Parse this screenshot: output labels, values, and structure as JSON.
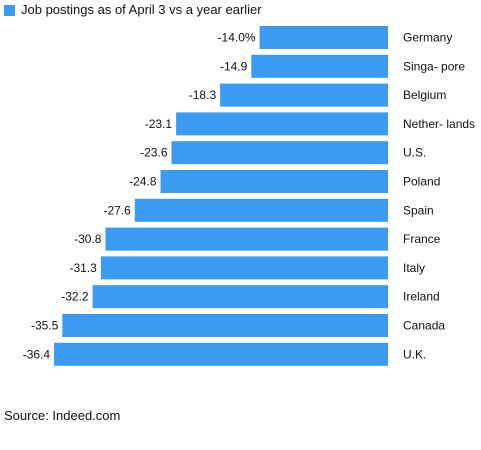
{
  "legend": {
    "label": "Job postings as of April 3 vs a year earlier",
    "color": "#3b9bf1"
  },
  "chart_data": {
    "type": "bar",
    "orientation": "horizontal",
    "categories": [
      "Germany",
      "Singa- pore",
      "Belgium",
      "Nether- lands",
      "U.S.",
      "Poland",
      "Spain",
      "France",
      "Italy",
      "Ireland",
      "Canada",
      "U.K."
    ],
    "values": [
      -14.0,
      -14.9,
      -18.3,
      -23.1,
      -23.6,
      -24.8,
      -27.6,
      -30.8,
      -31.3,
      -32.2,
      -35.5,
      -36.4
    ],
    "value_labels": [
      "-14.0%",
      "-14.9",
      "-18.3",
      "-23.1",
      "-23.6",
      "-24.8",
      "-27.6",
      "-30.8",
      "-31.3",
      "-32.2",
      "-35.5",
      "-36.4"
    ],
    "xlim": [
      -37.5,
      0
    ],
    "series": [
      {
        "values": [
          -14.0,
          -14.9,
          -18.3,
          -23.1,
          -23.6,
          -24.8,
          -27.6,
          -30.8,
          -31.3,
          -32.2,
          -35.5,
          -36.4
        ]
      }
    ],
    "grid": false,
    "legend_position": "top-left",
    "bar_color": "#3b9bf1"
  },
  "source": "Source: Indeed.com"
}
